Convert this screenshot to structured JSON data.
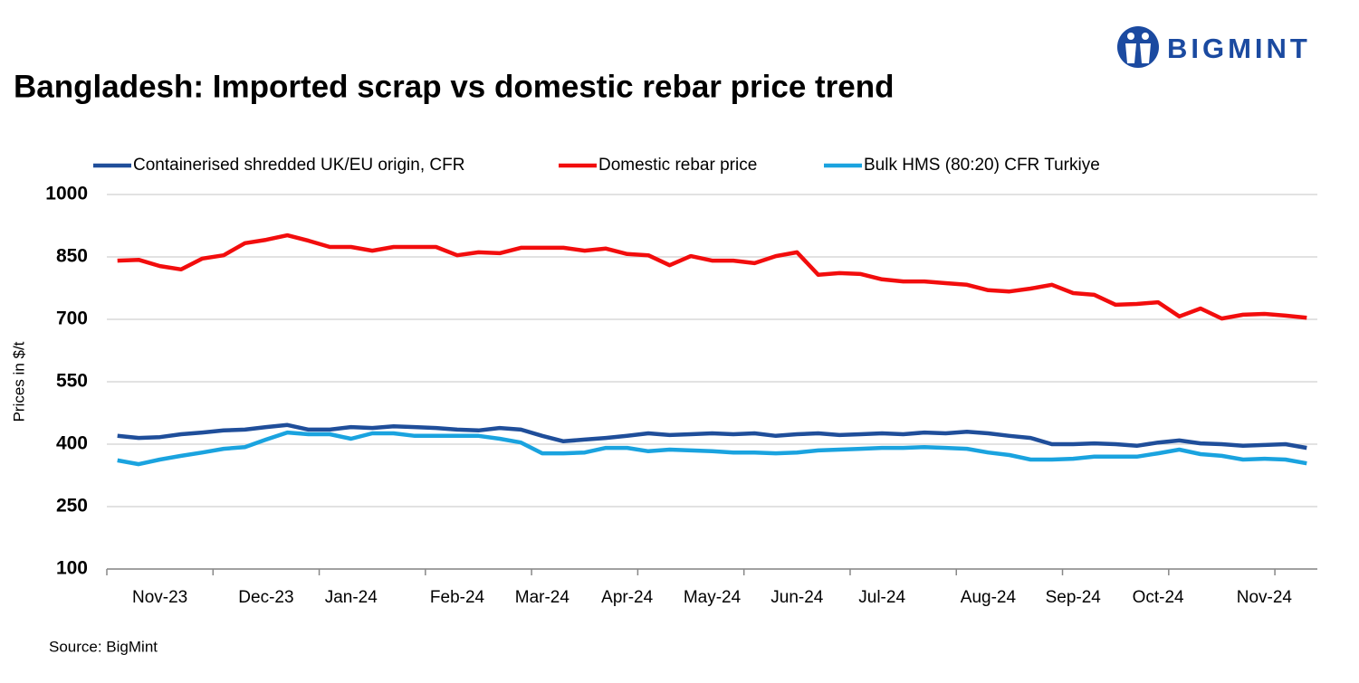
{
  "logo": {
    "text": "BIGMINT"
  },
  "chart_data": {
    "type": "line",
    "title": "Bangladesh: Imported scrap vs domestic rebar price trend",
    "y_label": "Prices in $/t",
    "source": "Source: BigMint",
    "categories": [
      null,
      null,
      "Nov-23",
      null,
      null,
      null,
      null,
      "Dec-23",
      null,
      null,
      null,
      "Jan-24",
      null,
      null,
      null,
      null,
      "Feb-24",
      null,
      null,
      null,
      "Mar-24",
      null,
      null,
      null,
      "Apr-24",
      null,
      null,
      null,
      "May-24",
      null,
      null,
      null,
      "Jun-24",
      null,
      null,
      null,
      "Jul-24",
      null,
      null,
      null,
      null,
      "Aug-24",
      null,
      null,
      null,
      "Sep-24",
      null,
      null,
      null,
      "Oct-24",
      null,
      null,
      null,
      null,
      "Nov-24",
      null,
      null
    ],
    "series": [
      {
        "name": "Containerised shredded UK/EU origin, CFR",
        "color": "#1f4e9a",
        "values": [
          420,
          415,
          417,
          424,
          428,
          433,
          435,
          441,
          446,
          435,
          435,
          441,
          439,
          443,
          441,
          439,
          435,
          433,
          439,
          435,
          420,
          407,
          411,
          415,
          420,
          426,
          422,
          424,
          426,
          424,
          426,
          420,
          424,
          426,
          422,
          424,
          426,
          424,
          428,
          426,
          430,
          426,
          420,
          415,
          400,
          400,
          402,
          400,
          396,
          404,
          409,
          402,
          400,
          396,
          398,
          400,
          391
        ]
      },
      {
        "name": "Domestic rebar price",
        "color": "#f20d0d",
        "values": [
          841,
          843,
          828,
          820,
          846,
          854,
          883,
          891,
          902,
          889,
          874,
          874,
          865,
          874,
          874,
          874,
          854,
          861,
          859,
          872,
          872,
          872,
          865,
          870,
          857,
          854,
          830,
          852,
          841,
          841,
          835,
          852,
          861,
          807,
          811,
          809,
          796,
          791,
          791,
          787,
          783,
          770,
          767,
          774,
          783,
          763,
          759,
          735,
          737,
          741,
          707,
          726,
          702,
          711,
          713,
          709,
          704
        ]
      },
      {
        "name": "Bulk HMS (80:20) CFR Turkiye",
        "color": "#1aa3df",
        "values": [
          361,
          352,
          363,
          372,
          380,
          389,
          393,
          411,
          428,
          424,
          424,
          413,
          426,
          426,
          420,
          420,
          420,
          420,
          413,
          404,
          378,
          378,
          380,
          391,
          391,
          383,
          387,
          385,
          383,
          380,
          380,
          378,
          380,
          385,
          387,
          389,
          391,
          391,
          393,
          391,
          389,
          380,
          374,
          363,
          363,
          365,
          370,
          370,
          370,
          378,
          387,
          376,
          372,
          363,
          365,
          363,
          354
        ]
      }
    ],
    "ylim": [
      100,
      1000
    ],
    "yticks": [
      100,
      250,
      400,
      550,
      700,
      850,
      1000
    ],
    "grid": true
  }
}
